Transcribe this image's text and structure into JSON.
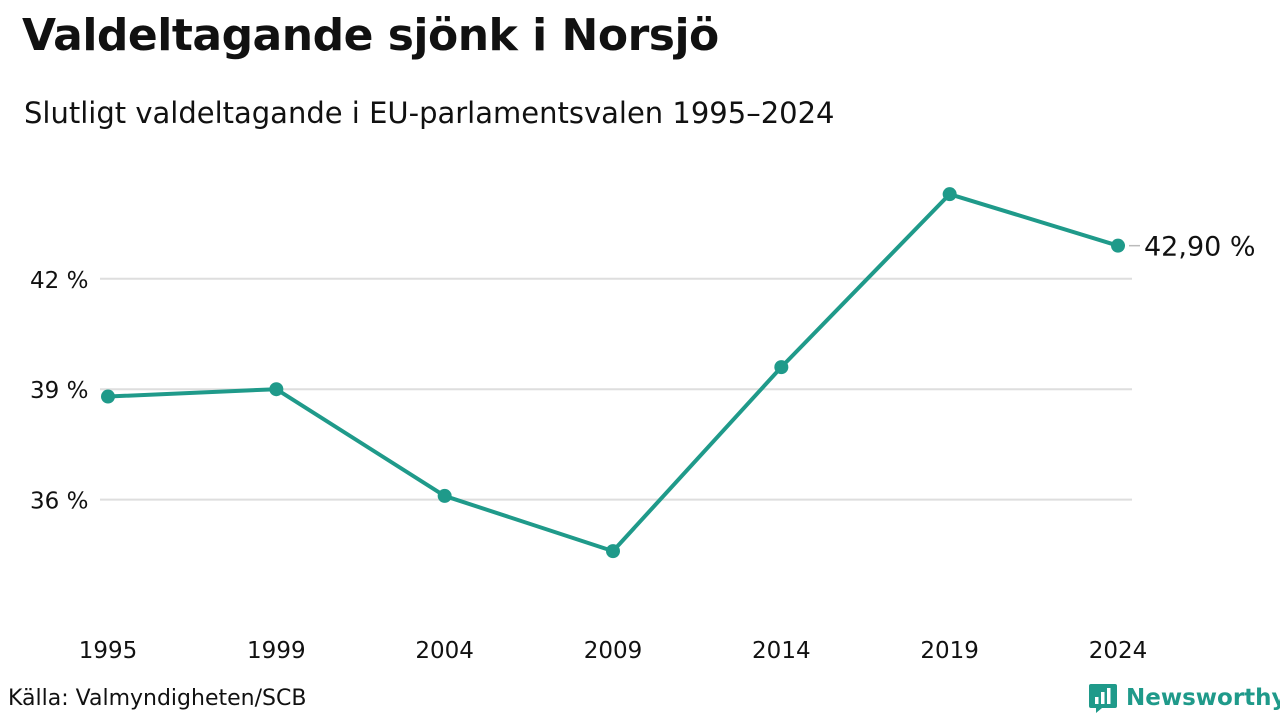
{
  "header": {
    "title": "Valdeltagande sjönk i Norsjö",
    "subtitle": "Slutligt valdeltagande i EU-parlamentsvalen 1995–2024"
  },
  "footer": {
    "source": "Källa: Valmyndigheten/SCB",
    "brand": "Newsworthy",
    "brand_icon": "bar-chart-speech-bubble-icon"
  },
  "colors": {
    "line": "#1f9a8a",
    "grid": "#dedede",
    "text": "#111111"
  },
  "chart_data": {
    "type": "line",
    "title": "Valdeltagande sjönk i Norsjö",
    "subtitle": "Slutligt valdeltagande i EU-parlamentsvalen 1995–2024",
    "categories": [
      "1995",
      "1999",
      "2004",
      "2009",
      "2014",
      "2019",
      "2024"
    ],
    "series": [
      {
        "values": [
          38.8,
          39.0,
          36.1,
          34.6,
          39.6,
          44.3,
          42.9
        ]
      }
    ],
    "ylim": [
      33.0,
      45.5
    ],
    "yticks": [
      36,
      39,
      42
    ],
    "ytick_labels": [
      "36 %",
      "39 %",
      "42 %"
    ],
    "end_label": "42,90 %",
    "grid": true,
    "legend": "none"
  }
}
